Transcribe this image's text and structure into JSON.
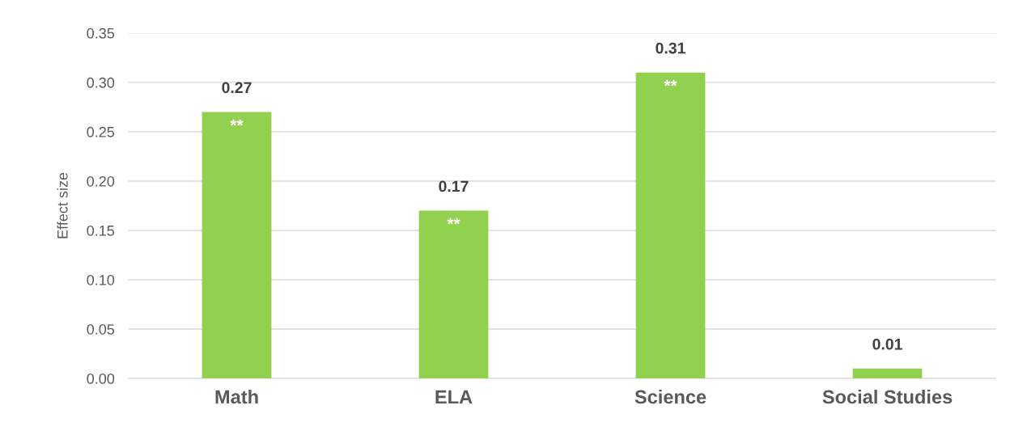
{
  "chart_data": {
    "type": "bar",
    "ylabel": "Effect size",
    "categories": [
      "Math",
      "ELA",
      "Science",
      "Social Studies"
    ],
    "values": [
      0.27,
      0.17,
      0.31,
      0.01
    ],
    "color": "#92d050",
    "ylim": [
      0,
      0.35
    ],
    "yticks": [
      {
        "value": 0,
        "label": "0.00"
      },
      {
        "value": 0.05,
        "label": "0.05"
      },
      {
        "value": 0.1,
        "label": "0.10"
      },
      {
        "value": 0.15,
        "label": "0.15"
      },
      {
        "value": 0.2,
        "label": "0.20"
      },
      {
        "value": 0.25,
        "label": "0.25"
      },
      {
        "value": 0.3,
        "label": "0.30"
      },
      {
        "value": 0.35,
        "label": "0.35"
      }
    ],
    "grid": "y",
    "data_labels": true,
    "annotations": [
      {
        "text": "**",
        "x": "Math",
        "y": 0.27
      },
      {
        "text": "**",
        "x": "ELA",
        "y": 0.17
      },
      {
        "text": "**",
        "x": "Science",
        "y": 0.31
      }
    ]
  }
}
